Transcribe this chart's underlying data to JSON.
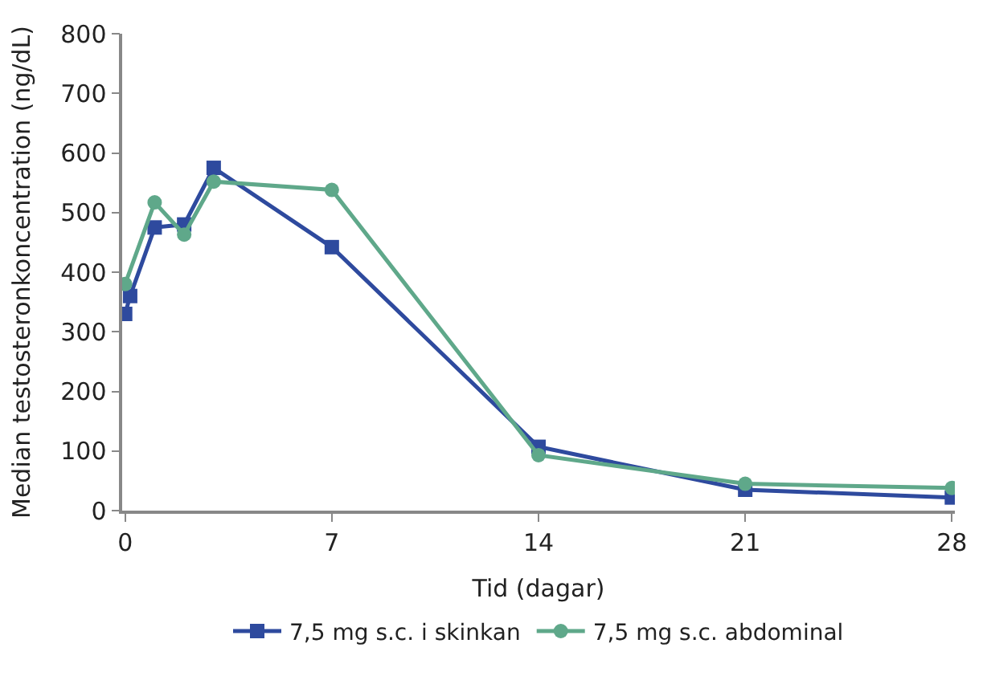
{
  "chart_data": {
    "type": "line",
    "xlabel": "Tid (dagar)",
    "ylabel": "Median testosteronkoncentration (ng/dL)",
    "xlim": [
      0,
      28
    ],
    "xticks": [
      0,
      7,
      14,
      21,
      28
    ],
    "ylim": [
      0,
      800
    ],
    "yticks": [
      0,
      100,
      200,
      300,
      400,
      500,
      600,
      700,
      800
    ],
    "legend": "bottom",
    "series": [
      {
        "name": "7,5 mg s.c. i skinkan",
        "color": "#2e4a9e",
        "marker": "square",
        "x": [
          0,
          0.17,
          1,
          2,
          3,
          7,
          14,
          21,
          28
        ],
        "values": [
          330,
          360,
          475,
          480,
          575,
          442,
          107,
          35,
          22
        ]
      },
      {
        "name": "7,5 mg s.c. abdominal",
        "color": "#5fa88a",
        "marker": "circle",
        "x": [
          0,
          1,
          2,
          3,
          7,
          14,
          21,
          28
        ],
        "values": [
          380,
          517,
          463,
          552,
          538,
          93,
          45,
          38
        ]
      }
    ]
  }
}
